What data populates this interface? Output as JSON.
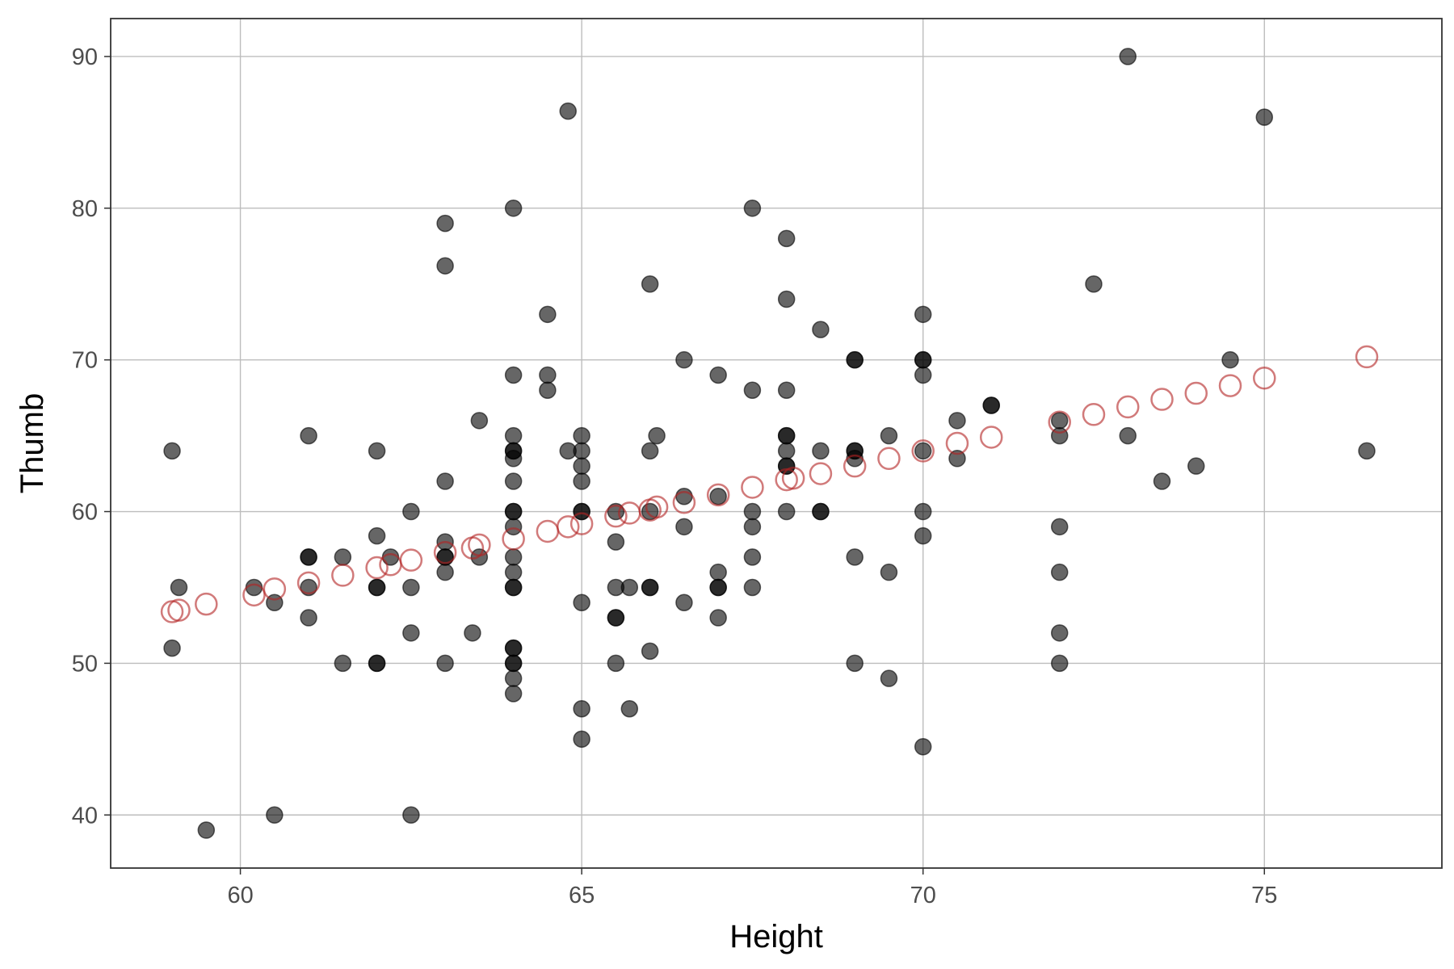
{
  "chart_data": {
    "type": "scatter",
    "title": "",
    "xlabel": "Height",
    "ylabel": "Thumb",
    "xlim": [
      58.1,
      77.6
    ],
    "ylim": [
      36.5,
      92.5
    ],
    "x_ticks": [
      60,
      65,
      70,
      75
    ],
    "y_ticks": [
      40,
      50,
      60,
      70,
      80,
      90
    ],
    "grid": true,
    "legend": "none",
    "colors": {
      "observed": "#000000",
      "predicted": "#b22222"
    },
    "series": [
      {
        "marker": "filled-circle",
        "points": [
          [
            59,
            64
          ],
          [
            59,
            51
          ],
          [
            59.1,
            55
          ],
          [
            59.5,
            39
          ],
          [
            60.2,
            55
          ],
          [
            60.5,
            54
          ],
          [
            60.5,
            40
          ],
          [
            61,
            65
          ],
          [
            61,
            57
          ],
          [
            61,
            57
          ],
          [
            61,
            55
          ],
          [
            61,
            53
          ],
          [
            61.5,
            57
          ],
          [
            61.5,
            50
          ],
          [
            62,
            64
          ],
          [
            62,
            58.4
          ],
          [
            62,
            55
          ],
          [
            62,
            55
          ],
          [
            62,
            50
          ],
          [
            62,
            50
          ],
          [
            62.2,
            57
          ],
          [
            62.5,
            60
          ],
          [
            62.5,
            55
          ],
          [
            62.5,
            52
          ],
          [
            62.5,
            40
          ],
          [
            63,
            79
          ],
          [
            63,
            76.2
          ],
          [
            63,
            62
          ],
          [
            63,
            58
          ],
          [
            63,
            57
          ],
          [
            63,
            57
          ],
          [
            63,
            56
          ],
          [
            63,
            50
          ],
          [
            63.4,
            52
          ],
          [
            63.5,
            66
          ],
          [
            63.5,
            57
          ],
          [
            64,
            80
          ],
          [
            64,
            69
          ],
          [
            64,
            65
          ],
          [
            64,
            64
          ],
          [
            64,
            64
          ],
          [
            64,
            63.5
          ],
          [
            64,
            62
          ],
          [
            64,
            60
          ],
          [
            64,
            60
          ],
          [
            64,
            59
          ],
          [
            64,
            57
          ],
          [
            64,
            56
          ],
          [
            64,
            55
          ],
          [
            64,
            55
          ],
          [
            64,
            51
          ],
          [
            64,
            51
          ],
          [
            64,
            50
          ],
          [
            64,
            50
          ],
          [
            64,
            49
          ],
          [
            64,
            48
          ],
          [
            64.5,
            73
          ],
          [
            64.5,
            69
          ],
          [
            64.5,
            68
          ],
          [
            64.8,
            86.4
          ],
          [
            64.8,
            64
          ],
          [
            65,
            65
          ],
          [
            65,
            64
          ],
          [
            65,
            63
          ],
          [
            65,
            62
          ],
          [
            65,
            60
          ],
          [
            65,
            60
          ],
          [
            65,
            54
          ],
          [
            65,
            47
          ],
          [
            65,
            45
          ],
          [
            65.5,
            60
          ],
          [
            65.5,
            58
          ],
          [
            65.5,
            55
          ],
          [
            65.5,
            53
          ],
          [
            65.5,
            53
          ],
          [
            65.5,
            50
          ],
          [
            65.7,
            55
          ],
          [
            65.7,
            47
          ],
          [
            66,
            75
          ],
          [
            66,
            64
          ],
          [
            66,
            60
          ],
          [
            66,
            55
          ],
          [
            66,
            55
          ],
          [
            66,
            50.8
          ],
          [
            66.1,
            65
          ],
          [
            66.5,
            70
          ],
          [
            66.5,
            61
          ],
          [
            66.5,
            59
          ],
          [
            66.5,
            54
          ],
          [
            67,
            69
          ],
          [
            67,
            61
          ],
          [
            67,
            56
          ],
          [
            67,
            55
          ],
          [
            67,
            55
          ],
          [
            67,
            53
          ],
          [
            67.5,
            80
          ],
          [
            67.5,
            68
          ],
          [
            67.5,
            60
          ],
          [
            67.5,
            59
          ],
          [
            67.5,
            57
          ],
          [
            67.5,
            55
          ],
          [
            68,
            78
          ],
          [
            68,
            74
          ],
          [
            68,
            68
          ],
          [
            68,
            65
          ],
          [
            68,
            65
          ],
          [
            68,
            64
          ],
          [
            68,
            63
          ],
          [
            68,
            63
          ],
          [
            68,
            60
          ],
          [
            68.5,
            72
          ],
          [
            68.5,
            64
          ],
          [
            68.5,
            60
          ],
          [
            68.5,
            60
          ],
          [
            69,
            70
          ],
          [
            69,
            70
          ],
          [
            69,
            64
          ],
          [
            69,
            64
          ],
          [
            69,
            63.5
          ],
          [
            69,
            57
          ],
          [
            69,
            50
          ],
          [
            69.5,
            65
          ],
          [
            69.5,
            56
          ],
          [
            69.5,
            49
          ],
          [
            70,
            73
          ],
          [
            70,
            70
          ],
          [
            70,
            70
          ],
          [
            70,
            69
          ],
          [
            70,
            64
          ],
          [
            70,
            60
          ],
          [
            70,
            58.4
          ],
          [
            70,
            44.5
          ],
          [
            70.5,
            66
          ],
          [
            70.5,
            63.5
          ],
          [
            71,
            67
          ],
          [
            71,
            67
          ],
          [
            72,
            66
          ],
          [
            72,
            65
          ],
          [
            72,
            59
          ],
          [
            72,
            56
          ],
          [
            72,
            52
          ],
          [
            72,
            50
          ],
          [
            72.5,
            75
          ],
          [
            73,
            90
          ],
          [
            73,
            65
          ],
          [
            73.5,
            62
          ],
          [
            74,
            63
          ],
          [
            74.5,
            70
          ],
          [
            75,
            86
          ],
          [
            76.5,
            64
          ]
        ]
      },
      {
        "marker": "open-circle",
        "points": [
          [
            59,
            53.4
          ],
          [
            59.1,
            53.5
          ],
          [
            59.5,
            53.9
          ],
          [
            60.2,
            54.5
          ],
          [
            60.5,
            54.9
          ],
          [
            61,
            55.3
          ],
          [
            61.5,
            55.8
          ],
          [
            62,
            56.3
          ],
          [
            62.2,
            56.5
          ],
          [
            62.5,
            56.8
          ],
          [
            63,
            57.3
          ],
          [
            63.4,
            57.6
          ],
          [
            63.5,
            57.8
          ],
          [
            64,
            58.2
          ],
          [
            64.5,
            58.7
          ],
          [
            64.8,
            59
          ],
          [
            65,
            59.2
          ],
          [
            65.5,
            59.7
          ],
          [
            65.7,
            59.9
          ],
          [
            66,
            60.1
          ],
          [
            66.1,
            60.3
          ],
          [
            66.5,
            60.6
          ],
          [
            67,
            61.1
          ],
          [
            67.5,
            61.6
          ],
          [
            68,
            62.1
          ],
          [
            68.1,
            62.2
          ],
          [
            68.5,
            62.5
          ],
          [
            69,
            63
          ],
          [
            69.5,
            63.5
          ],
          [
            70,
            64
          ],
          [
            70.5,
            64.5
          ],
          [
            71,
            64.9
          ],
          [
            72,
            65.9
          ],
          [
            72.5,
            66.4
          ],
          [
            73,
            66.9
          ],
          [
            73.5,
            67.4
          ],
          [
            74,
            67.8
          ],
          [
            74.5,
            68.3
          ],
          [
            75,
            68.8
          ],
          [
            76.5,
            70.2
          ]
        ]
      }
    ]
  }
}
